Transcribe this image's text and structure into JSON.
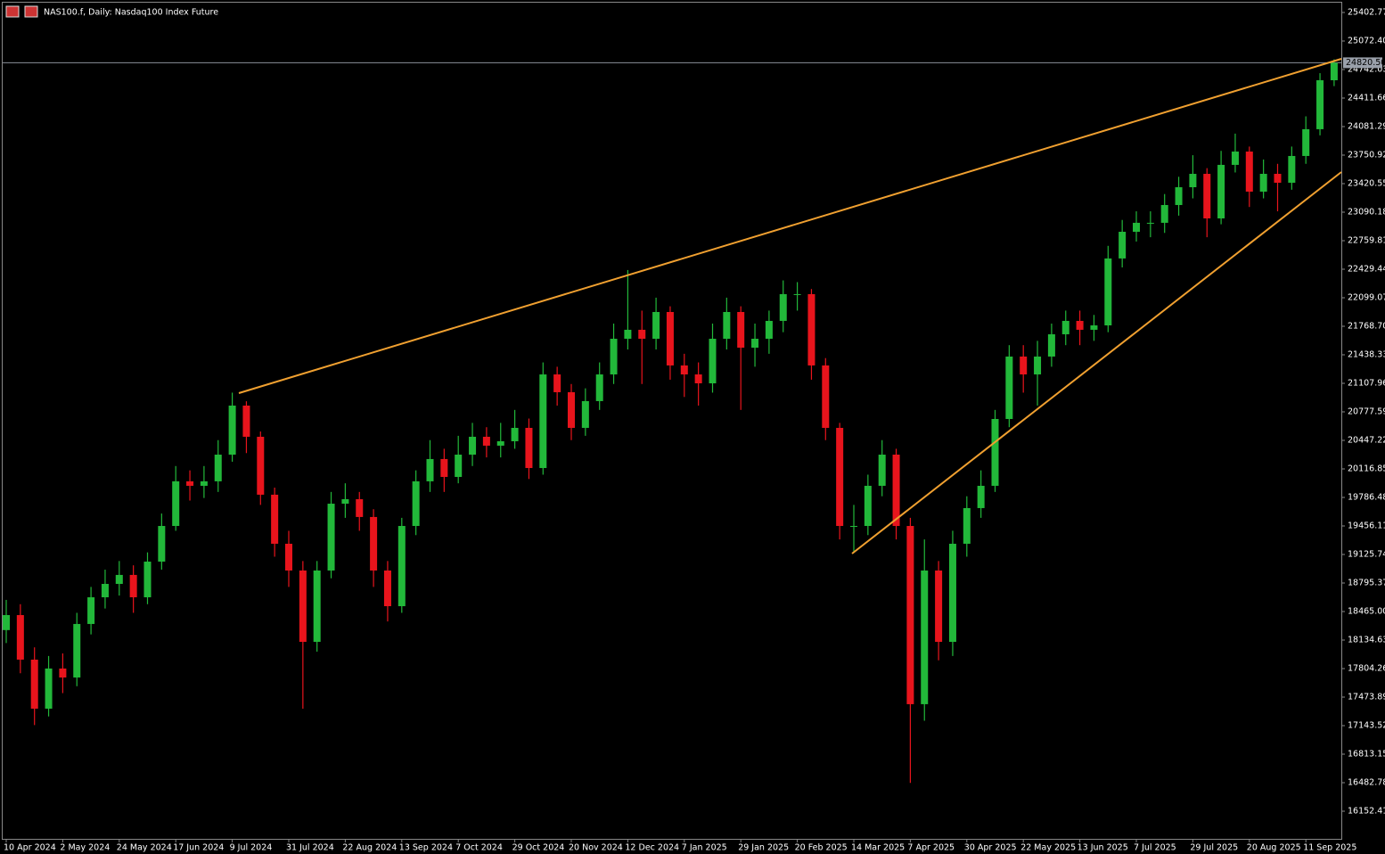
{
  "chart_data": {
    "type": "candlestick",
    "title": "NAS100.f, Daily:  Nasdaq100 Index Future",
    "categories": [
      "10 Apr 2024",
      null,
      null,
      null,
      "2 May 2024",
      null,
      null,
      null,
      "24 May 2024",
      null,
      null,
      null,
      "17 Jun 2024",
      null,
      null,
      null,
      "9 Jul 2024",
      null,
      null,
      null,
      "31 Jul 2024",
      null,
      null,
      null,
      "22 Aug 2024",
      null,
      null,
      null,
      "13 Sep 2024",
      null,
      null,
      null,
      "7 Oct 2024",
      null,
      null,
      null,
      "29 Oct 2024",
      null,
      null,
      null,
      "20 Nov 2024",
      null,
      null,
      null,
      "12 Dec 2024",
      null,
      null,
      null,
      "7 Jan 2025",
      null,
      null,
      null,
      "29 Jan 2025",
      null,
      null,
      null,
      "20 Feb 2025",
      null,
      null,
      null,
      "14 Mar 2025",
      null,
      null,
      null,
      "7 Apr 2025",
      null,
      null,
      null,
      "30 Apr 2025",
      null,
      null,
      null,
      "22 May 2025",
      null,
      null,
      null,
      "13 Jun 2025",
      null,
      null,
      null,
      "7 Jul 2025",
      null,
      null,
      null,
      "29 Jul 2025",
      null,
      null,
      null,
      "20 Aug 2025",
      null,
      null,
      null,
      "11 Sep 2025",
      null,
      null
    ],
    "open": [
      18250,
      18424,
      17908,
      17340,
      17805,
      17701,
      18321,
      18630,
      18785,
      18889,
      18630,
      19043,
      19456,
      19973,
      19921,
      19973,
      20282,
      20850,
      20489,
      19818,
      19250,
      18940,
      18114,
      18940,
      19714,
      19766,
      19560,
      18940,
      18527,
      19456,
      19973,
      20231,
      20024,
      20282,
      20489,
      20386,
      20437,
      20592,
      20127,
      21211,
      21005,
      20592,
      20902,
      21211,
      21624,
      21728,
      21624,
      21934,
      21315,
      21211,
      21108,
      21624,
      21934,
      21521,
      21624,
      21831,
      22141,
      22141,
      21315,
      20592,
      19456,
      19456,
      19921,
      20282,
      19456,
      17392,
      18940,
      18114,
      19250,
      19663,
      19921,
      20695,
      21418,
      21211,
      21418,
      21676,
      21831,
      21728,
      21779,
      22554,
      22863,
      22967,
      22967,
      23173,
      23379,
      23534,
      23018,
      23638,
      23792,
      23328,
      23534,
      23431,
      23741,
      24051,
      24618
    ],
    "high": [
      18600,
      18550,
      18050,
      17950,
      17980,
      18450,
      18750,
      18950,
      19050,
      19000,
      19150,
      19600,
      20150,
      20100,
      20150,
      20450,
      21000,
      20900,
      20550,
      19900,
      19400,
      19050,
      19050,
      19850,
      19950,
      19850,
      19650,
      19050,
      19550,
      20100,
      20450,
      20350,
      20500,
      20650,
      20600,
      20650,
      20800,
      20700,
      21350,
      21300,
      21100,
      21050,
      21350,
      21800,
      22420,
      21950,
      22100,
      22000,
      21450,
      21350,
      21800,
      22100,
      22000,
      21800,
      21950,
      22300,
      22280,
      22200,
      21400,
      20650,
      19700,
      20050,
      20450,
      20350,
      19550,
      19300,
      19050,
      19400,
      19800,
      20100,
      20800,
      21550,
      21550,
      21600,
      21800,
      21950,
      21950,
      21900,
      22700,
      23000,
      23100,
      23100,
      23300,
      23500,
      23750,
      23600,
      23800,
      24000,
      23850,
      23700,
      23650,
      23850,
      24200,
      24700,
      24860
    ],
    "low": [
      18100,
      17750,
      17150,
      17250,
      17520,
      17600,
      18200,
      18500,
      18650,
      18450,
      18550,
      18950,
      19400,
      19750,
      19780,
      19850,
      20200,
      20300,
      19700,
      19100,
      18750,
      17340,
      18000,
      18850,
      19550,
      19400,
      18750,
      18350,
      18450,
      19350,
      19850,
      19850,
      19950,
      20150,
      20250,
      20250,
      20350,
      20000,
      20050,
      20850,
      20450,
      20500,
      20800,
      21100,
      21500,
      21100,
      21500,
      21150,
      20950,
      20850,
      21000,
      21500,
      20800,
      21300,
      21450,
      21700,
      21950,
      21150,
      20450,
      19300,
      19150,
      19350,
      19800,
      19300,
      16480,
      17200,
      17900,
      17950,
      19100,
      19550,
      19850,
      20600,
      21000,
      20850,
      21300,
      21550,
      21550,
      21600,
      21700,
      22450,
      22750,
      22800,
      22850,
      23050,
      23250,
      22800,
      22950,
      23550,
      23150,
      23250,
      23100,
      23350,
      23650,
      23980,
      24550
    ],
    "close": [
      18424,
      17908,
      17340,
      17805,
      17701,
      18321,
      18630,
      18785,
      18889,
      18630,
      19043,
      19456,
      19973,
      19921,
      19973,
      20282,
      20850,
      20489,
      19818,
      19250,
      18940,
      18114,
      18940,
      19714,
      19766,
      19560,
      18940,
      18527,
      19456,
      19973,
      20231,
      20024,
      20282,
      20489,
      20386,
      20437,
      20592,
      20127,
      21211,
      21005,
      20592,
      20902,
      21211,
      21624,
      21728,
      21624,
      21934,
      21315,
      21211,
      21108,
      21624,
      21934,
      21521,
      21624,
      21831,
      22141,
      22141,
      21315,
      20592,
      19456,
      19456,
      19921,
      20282,
      19456,
      17392,
      18940,
      18114,
      19250,
      19663,
      19921,
      20695,
      21418,
      21211,
      21418,
      21676,
      21831,
      21728,
      21779,
      22554,
      22863,
      22967,
      22967,
      23173,
      23379,
      23534,
      23018,
      23638,
      23792,
      23328,
      23534,
      23431,
      23741,
      24051,
      24618,
      24820.5
    ],
    "up_color": "#22b83a",
    "down_color": "#e8141c",
    "ylim": [
      15842.7,
      25526.7
    ],
    "yticks": [
      16152.41,
      16482.78,
      16813.15,
      17143.52,
      17473.89,
      17804.26,
      18134.63,
      {
        "value": 18465.0,
        "label": "18465.00"
      },
      18795.37,
      19125.74,
      19456.11,
      19786.48,
      20116.85,
      20447.22,
      20777.59,
      21107.96,
      21438.33,
      {
        "value": 21768.7,
        "label": "21768.70"
      },
      22099.07,
      22429.44,
      22759.81,
      23090.18,
      23420.55,
      23750.92,
      24081.29,
      24411.66,
      24742.03,
      {
        "value": 25072.4,
        "label": "25072.40"
      },
      25402.77
    ],
    "current_price": {
      "value": 24820.5,
      "label": "24820.50"
    }
  }
}
